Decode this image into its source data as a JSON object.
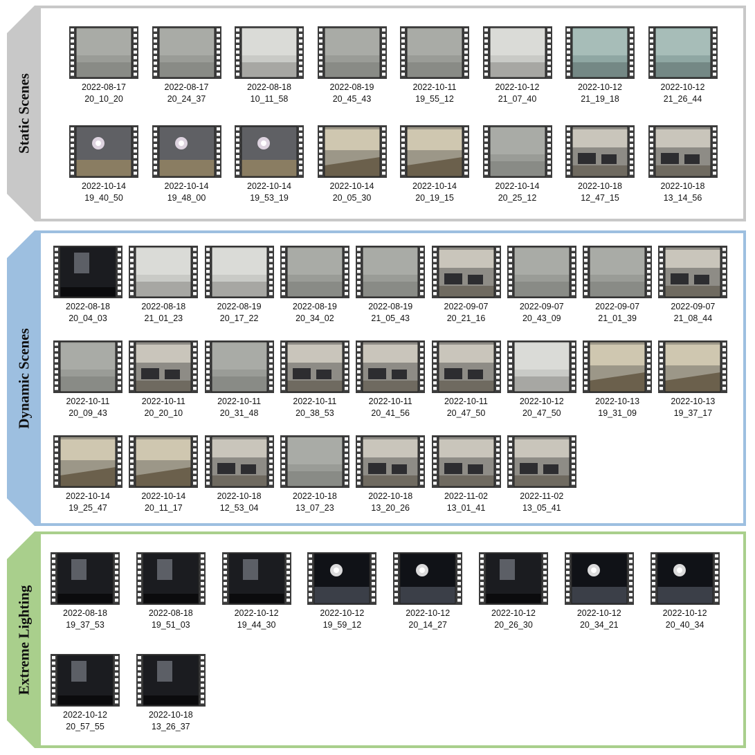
{
  "sections": [
    {
      "label": "Static Scenes",
      "accent": "#c8c8c8",
      "items": [
        {
          "date": "2022-08-17",
          "time": "20_10_20",
          "tone": "gray"
        },
        {
          "date": "2022-08-17",
          "time": "20_24_37",
          "tone": "gray"
        },
        {
          "date": "2022-08-18",
          "time": "10_11_58",
          "tone": "light"
        },
        {
          "date": "2022-08-19",
          "time": "20_45_43",
          "tone": "gray"
        },
        {
          "date": "2022-10-11",
          "time": "19_55_12",
          "tone": "gray"
        },
        {
          "date": "2022-10-12",
          "time": "21_07_40",
          "tone": "light"
        },
        {
          "date": "2022-10-12",
          "time": "21_19_18",
          "tone": "teal"
        },
        {
          "date": "2022-10-12",
          "time": "21_26_44",
          "tone": "teal"
        },
        {
          "date": "2022-10-14",
          "time": "19_40_50",
          "tone": "lamp"
        },
        {
          "date": "2022-10-14",
          "time": "19_48_00",
          "tone": "lamp"
        },
        {
          "date": "2022-10-14",
          "time": "19_53_19",
          "tone": "lamp"
        },
        {
          "date": "2022-10-14",
          "time": "20_05_30",
          "tone": "warm"
        },
        {
          "date": "2022-10-14",
          "time": "20_19_15",
          "tone": "warm"
        },
        {
          "date": "2022-10-14",
          "time": "20_25_12",
          "tone": "gray"
        },
        {
          "date": "2022-10-18",
          "time": "12_47_15",
          "tone": "office"
        },
        {
          "date": "2022-10-18",
          "time": "13_14_56",
          "tone": "office"
        }
      ]
    },
    {
      "label": "Dynamic Scenes",
      "accent": "#9dbfe0",
      "items": [
        {
          "date": "2022-08-18",
          "time": "20_04_03",
          "tone": "dark"
        },
        {
          "date": "2022-08-18",
          "time": "21_01_23",
          "tone": "light"
        },
        {
          "date": "2022-08-19",
          "time": "20_17_22",
          "tone": "light"
        },
        {
          "date": "2022-08-19",
          "time": "20_34_02",
          "tone": "gray"
        },
        {
          "date": "2022-08-19",
          "time": "21_05_43",
          "tone": "gray"
        },
        {
          "date": "2022-09-07",
          "time": "20_21_16",
          "tone": "office"
        },
        {
          "date": "2022-09-07",
          "time": "20_43_09",
          "tone": "gray"
        },
        {
          "date": "2022-09-07",
          "time": "21_01_39",
          "tone": "gray"
        },
        {
          "date": "2022-09-07",
          "time": "21_08_44",
          "tone": "office"
        },
        {
          "date": "2022-10-11",
          "time": "20_09_43",
          "tone": "gray"
        },
        {
          "date": "2022-10-11",
          "time": "20_20_10",
          "tone": "office"
        },
        {
          "date": "2022-10-11",
          "time": "20_31_48",
          "tone": "gray"
        },
        {
          "date": "2022-10-11",
          "time": "20_38_53",
          "tone": "office"
        },
        {
          "date": "2022-10-11",
          "time": "20_41_56",
          "tone": "office"
        },
        {
          "date": "2022-10-11",
          "time": "20_47_50",
          "tone": "office"
        },
        {
          "date": "2022-10-12",
          "time": "20_47_50",
          "tone": "light"
        },
        {
          "date": "2022-10-13",
          "time": "19_31_09",
          "tone": "warm"
        },
        {
          "date": "2022-10-13",
          "time": "19_37_17",
          "tone": "warm"
        },
        {
          "date": "2022-10-14",
          "time": "19_25_47",
          "tone": "warm"
        },
        {
          "date": "2022-10-14",
          "time": "20_11_17",
          "tone": "warm"
        },
        {
          "date": "2022-10-18",
          "time": "12_53_04",
          "tone": "office"
        },
        {
          "date": "2022-10-18",
          "time": "13_07_23",
          "tone": "gray"
        },
        {
          "date": "2022-10-18",
          "time": "13_20_26",
          "tone": "office"
        },
        {
          "date": "2022-11-02",
          "time": "13_01_41",
          "tone": "office"
        },
        {
          "date": "2022-11-02",
          "time": "13_05_41",
          "tone": "office"
        }
      ]
    },
    {
      "label": "Extreme Lighting",
      "accent": "#a9cf8c",
      "items": [
        {
          "date": "2022-08-18",
          "time": "19_37_53",
          "tone": "dark"
        },
        {
          "date": "2022-08-18",
          "time": "19_51_03",
          "tone": "dark"
        },
        {
          "date": "2022-10-12",
          "time": "19_44_30",
          "tone": "dark"
        },
        {
          "date": "2022-10-12",
          "time": "19_59_12",
          "tone": "night"
        },
        {
          "date": "2022-10-12",
          "time": "20_14_27",
          "tone": "night"
        },
        {
          "date": "2022-10-12",
          "time": "20_26_30",
          "tone": "dark"
        },
        {
          "date": "2022-10-12",
          "time": "20_34_21",
          "tone": "night"
        },
        {
          "date": "2022-10-12",
          "time": "20_40_34",
          "tone": "night"
        },
        {
          "date": "2022-10-12",
          "time": "20_57_55",
          "tone": "dark"
        },
        {
          "date": "2022-10-18",
          "time": "13_26_37",
          "tone": "dark"
        }
      ]
    }
  ]
}
